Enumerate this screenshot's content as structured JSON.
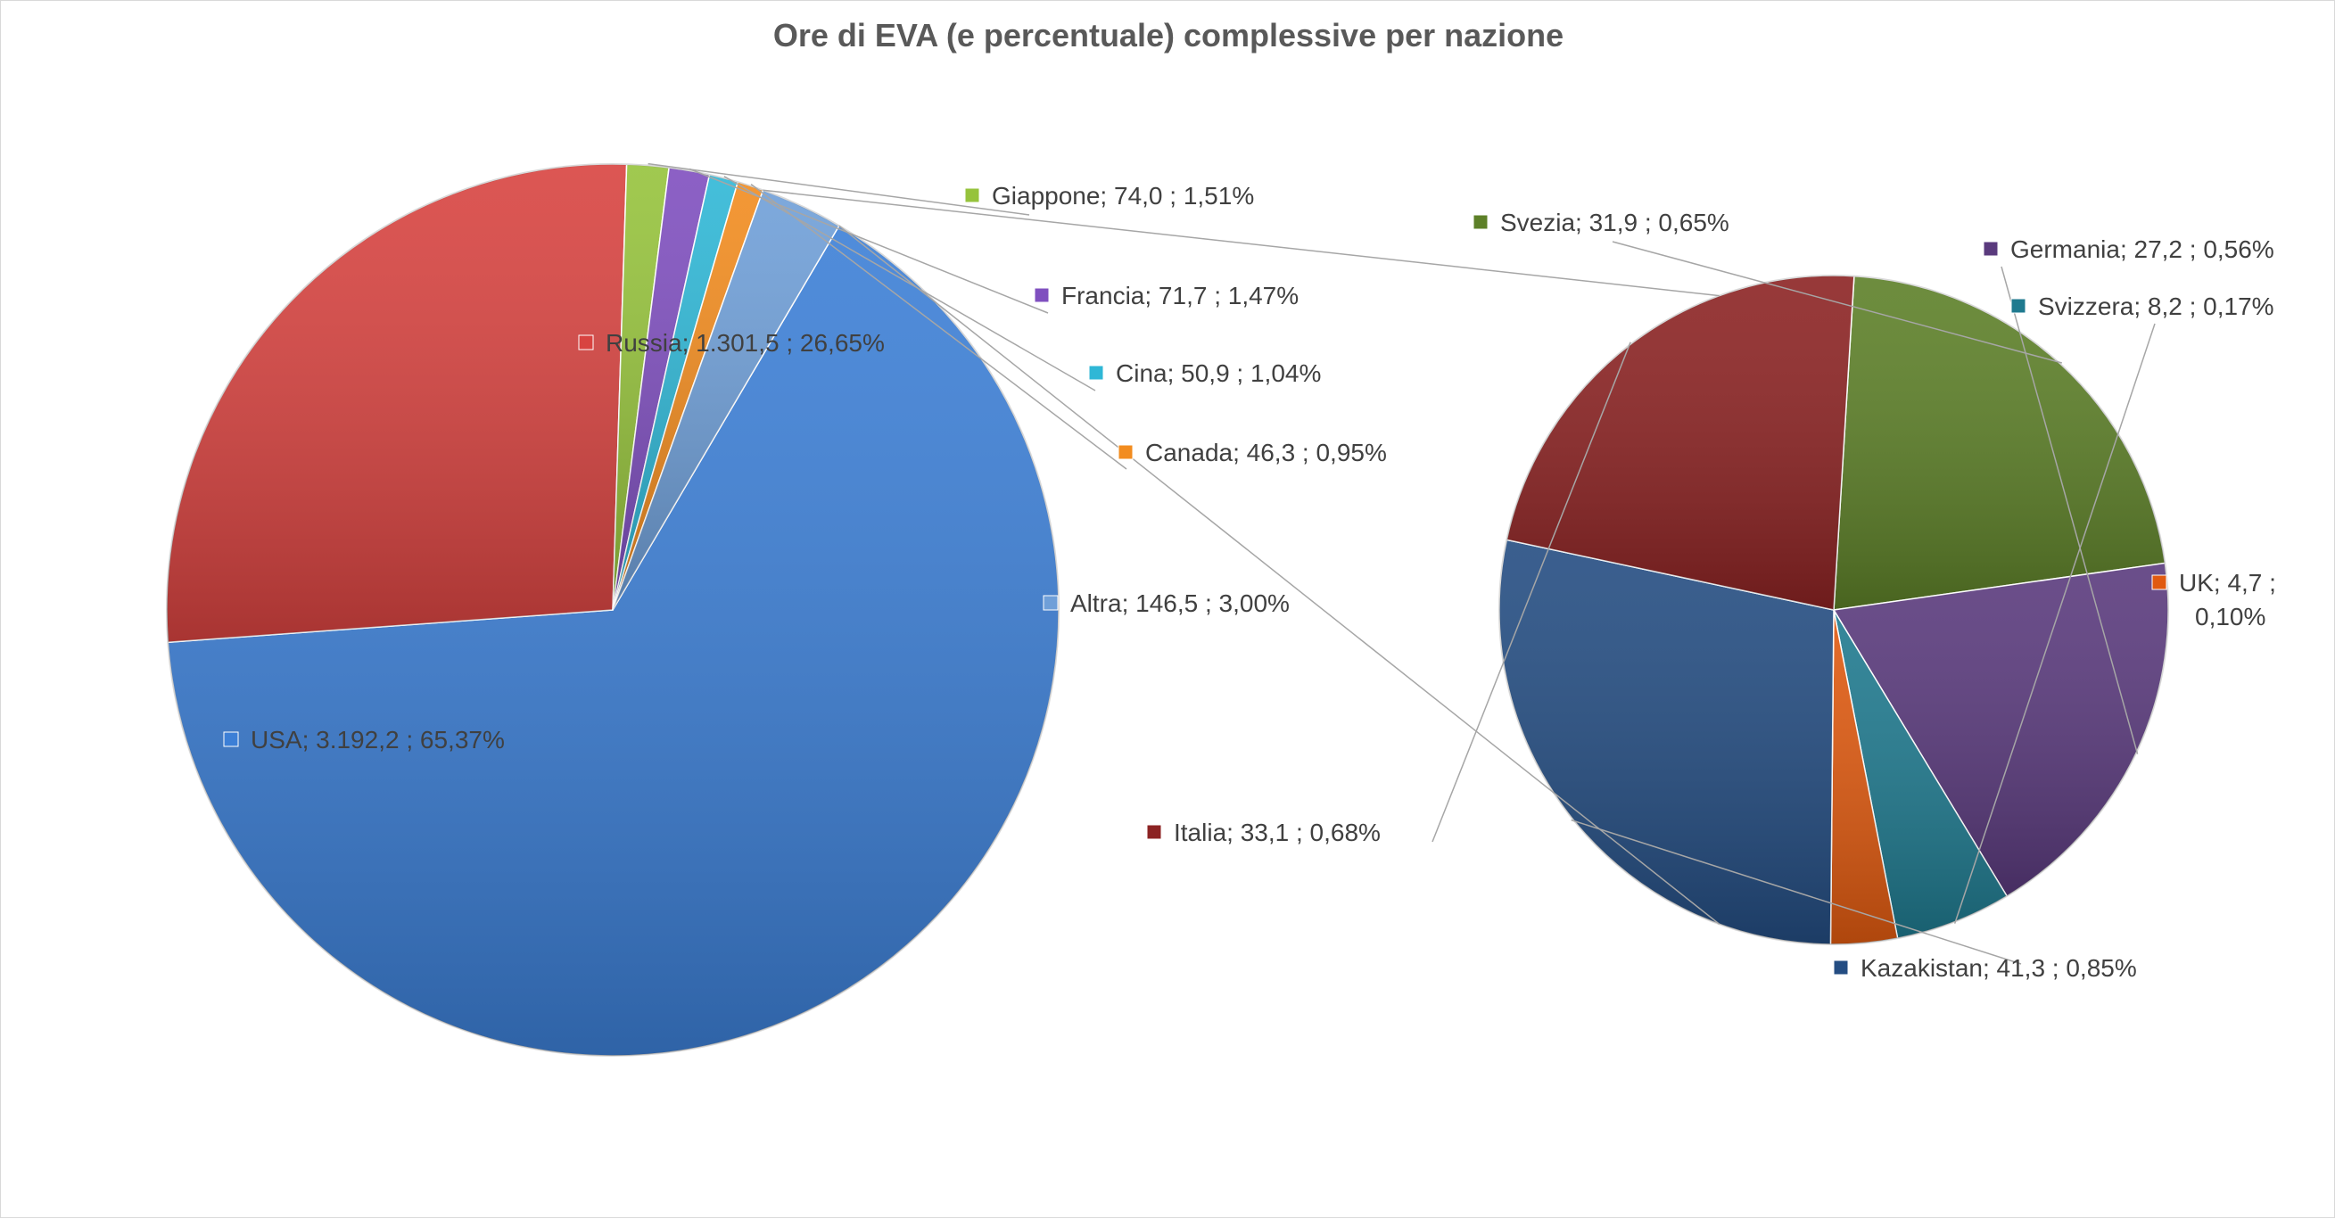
{
  "chart_data": {
    "type": "pie",
    "subtype": "pie-of-pie",
    "title": "Ore di EVA (e percentuale) complessive per nazione",
    "primary_pie": [
      {
        "name": "USA",
        "value": 3192.2,
        "percent": 65.37,
        "label": "USA;  3.192,2 ; 65,37%",
        "color": "#3c7fd6"
      },
      {
        "name": "Russia",
        "value": 1301.5,
        "percent": 26.65,
        "label": "Russia;  1.301,5 ; 26,65%",
        "color": "#d84340"
      },
      {
        "name": "Giappone",
        "value": 74.0,
        "percent": 1.51,
        "label": "Giappone;  74,0 ; 1,51%",
        "color": "#96c33c"
      },
      {
        "name": "Francia",
        "value": 71.7,
        "percent": 1.47,
        "label": "Francia;  71,7 ; 1,47%",
        "color": "#7f4fbf"
      },
      {
        "name": "Cina",
        "value": 50.9,
        "percent": 1.04,
        "label": "Cina;  50,9 ; 1,04%",
        "color": "#2fb7d6"
      },
      {
        "name": "Canada",
        "value": 46.3,
        "percent": 0.95,
        "label": "Canada;  46,3 ; 0,95%",
        "color": "#f28c1f"
      },
      {
        "name": "Altra",
        "value": 146.5,
        "percent": 3.0,
        "label": "Altra;  146,5 ; 3,00%",
        "color": "#6f9fd8"
      }
    ],
    "secondary_pie": [
      {
        "name": "Svezia",
        "value": 31.9,
        "percent": 0.65,
        "label": "Svezia;  31,9 ; 0,65%",
        "color": "#5d8028"
      },
      {
        "name": "Germania",
        "value": 27.2,
        "percent": 0.56,
        "label": "Germania;  27,2 ; 0,56%",
        "color": "#5a3a7d"
      },
      {
        "name": "Svizzera",
        "value": 8.2,
        "percent": 0.17,
        "label": "Svizzera;  8,2 ; 0,17%",
        "color": "#1f7a8f"
      },
      {
        "name": "UK",
        "value": 4.7,
        "percent": 0.1,
        "label": [
          "UK;  4,7 ;",
          "0,10%"
        ],
        "color": "#e05a10"
      },
      {
        "name": "Kazakistan",
        "value": 41.3,
        "percent": 0.85,
        "label": "Kazakistan;  41,3 ; 0,85%",
        "color": "#244d82"
      },
      {
        "name": "Italia",
        "value": 33.1,
        "percent": 0.68,
        "label": "Italia;  33,1 ; 0,68%",
        "color": "#8c2323"
      }
    ]
  }
}
